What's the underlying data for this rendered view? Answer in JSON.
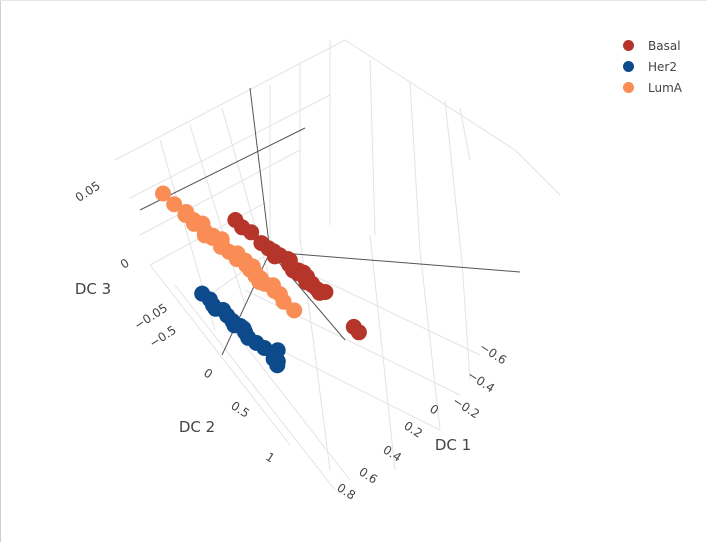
{
  "chart_data": {
    "type": "scatter3d",
    "axes": {
      "x": {
        "label": "DC 1",
        "ticks": [
          "−0.6",
          "−0.4",
          "−0.2",
          "0",
          "0.2",
          "0.4",
          "0.6",
          "0.8"
        ]
      },
      "y": {
        "label": "DC 2",
        "ticks": [
          "0",
          "0.5",
          "1"
        ]
      },
      "z": {
        "label": "DC 3",
        "ticks": [
          "−0.5",
          "−0.05",
          "0",
          "0.05"
        ]
      }
    },
    "legend_position": "top-right",
    "series": [
      {
        "name": "Basal",
        "color": "#b5352a",
        "points": [
          [
            -0.62,
            0.4,
            0.062
          ],
          [
            -0.6,
            0.41,
            0.055
          ],
          [
            -0.63,
            0.42,
            0.05
          ],
          [
            -0.61,
            0.44,
            0.04
          ],
          [
            -0.6,
            0.43,
            0.03
          ],
          [
            -0.62,
            0.45,
            0.035
          ],
          [
            -0.59,
            0.42,
            0.025
          ],
          [
            -0.64,
            0.44,
            0.022
          ],
          [
            -0.61,
            0.46,
            0.018
          ],
          [
            -0.58,
            0.44,
            0.015
          ],
          [
            -0.63,
            0.47,
            0.012
          ],
          [
            -0.6,
            0.48,
            0.01
          ],
          [
            -0.62,
            0.45,
            0.008
          ],
          [
            -0.59,
            0.46,
            0.005
          ],
          [
            -0.61,
            0.49,
            0.003
          ],
          [
            -0.63,
            0.43,
            0.02
          ],
          [
            -0.6,
            0.47,
            0.028
          ],
          [
            -0.62,
            0.5,
            0.0
          ],
          [
            -0.58,
            0.48,
            -0.003
          ],
          [
            -0.61,
            0.51,
            -0.005
          ],
          [
            -0.59,
            0.5,
            0.002
          ],
          [
            -0.64,
            0.48,
            0.006
          ],
          [
            -0.6,
            0.52,
            -0.008
          ],
          [
            -0.57,
            0.46,
            0.012
          ],
          [
            -0.62,
            0.49,
            -0.01
          ],
          [
            -0.55,
            0.58,
            -0.04
          ],
          [
            -0.54,
            0.59,
            -0.045
          ]
        ]
      },
      {
        "name": "Her2",
        "color": "#0d4a8c",
        "points": [
          [
            0.3,
            0.62,
            0.01
          ],
          [
            0.28,
            0.64,
            0.005
          ],
          [
            0.31,
            0.65,
            0.0
          ],
          [
            0.27,
            0.66,
            -0.005
          ],
          [
            0.29,
            0.67,
            -0.01
          ],
          [
            0.32,
            0.66,
            -0.003
          ],
          [
            0.3,
            0.68,
            -0.015
          ],
          [
            0.28,
            0.69,
            -0.02
          ],
          [
            0.31,
            0.7,
            -0.018
          ],
          [
            0.29,
            0.71,
            -0.025
          ],
          [
            0.27,
            0.7,
            -0.022
          ],
          [
            0.32,
            0.72,
            -0.03
          ],
          [
            0.3,
            0.73,
            -0.035
          ],
          [
            0.28,
            0.74,
            -0.04
          ],
          [
            0.22,
            0.72,
            -0.045
          ],
          [
            0.31,
            0.76,
            -0.05
          ],
          [
            0.29,
            0.77,
            -0.052
          ],
          [
            0.33,
            0.78,
            -0.055
          ]
        ]
      },
      {
        "name": "LumA",
        "color": "#f98d55",
        "points": [
          [
            -0.05,
            0.2,
            0.08
          ],
          [
            -0.04,
            0.22,
            0.07
          ],
          [
            -0.06,
            0.23,
            0.062
          ],
          [
            -0.03,
            0.24,
            0.06
          ],
          [
            -0.05,
            0.25,
            0.055
          ],
          [
            -0.07,
            0.24,
            0.05
          ],
          [
            -0.02,
            0.26,
            0.052
          ],
          [
            -0.04,
            0.27,
            0.045
          ],
          [
            -0.06,
            0.28,
            0.04
          ],
          [
            -0.03,
            0.28,
            0.038
          ],
          [
            -0.05,
            0.29,
            0.032
          ],
          [
            -0.08,
            0.27,
            0.035
          ],
          [
            -0.02,
            0.3,
            0.03
          ],
          [
            -0.04,
            0.31,
            0.025
          ],
          [
            -0.06,
            0.32,
            0.02
          ],
          [
            -0.03,
            0.32,
            0.018
          ],
          [
            -0.05,
            0.33,
            0.012
          ],
          [
            -0.07,
            0.31,
            0.015
          ],
          [
            -0.04,
            0.34,
            0.008
          ],
          [
            -0.06,
            0.35,
            0.005
          ],
          [
            -0.02,
            0.35,
            0.002
          ],
          [
            -0.05,
            0.36,
            0.0
          ],
          [
            -0.03,
            0.37,
            -0.005
          ],
          [
            -0.07,
            0.36,
            -0.008
          ],
          [
            -0.04,
            0.38,
            -0.012
          ],
          [
            -0.06,
            0.39,
            -0.015
          ],
          [
            -0.01,
            0.4,
            -0.022
          ],
          [
            -0.02,
            0.42,
            -0.03
          ],
          [
            -0.08,
            0.3,
            0.022
          ],
          [
            -0.01,
            0.29,
            0.042
          ],
          [
            -0.09,
            0.33,
            0.01
          ],
          [
            -0.02,
            0.38,
            -0.002
          ]
        ]
      }
    ]
  }
}
